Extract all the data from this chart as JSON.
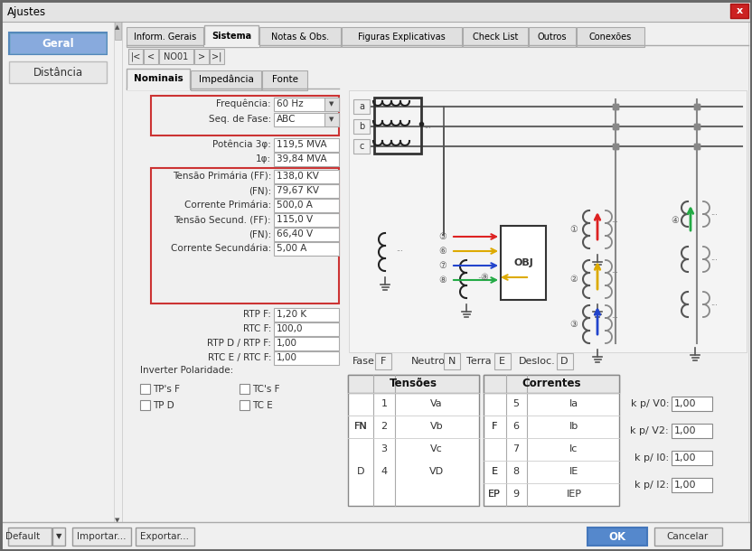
{
  "title": "Ajustes",
  "titlebar_bg": "#e8e8e8",
  "titlebar_text": "#000000",
  "close_btn_color": "#cc2222",
  "window_bg": "#f0f0f0",
  "sidebar_bg": "#f0f0f0",
  "tabs_top": [
    "Inform. Gerais",
    "Sistema",
    "Notas & Obs.",
    "Figuras Explicativas",
    "Check List",
    "Outros",
    "Conexões"
  ],
  "active_tab": "Sistema",
  "nav_label": "NO01",
  "sub_tabs": [
    "Nominais",
    "Impedância",
    "Fonte"
  ],
  "active_sub_tab": "Nominais",
  "kp_labels": [
    "k p/ V0:",
    "k p/ V2:",
    "k p/ I0:",
    "k p/ I2:"
  ],
  "kp_values": [
    "1,00",
    "1,00",
    "1,00",
    "1,00"
  ]
}
